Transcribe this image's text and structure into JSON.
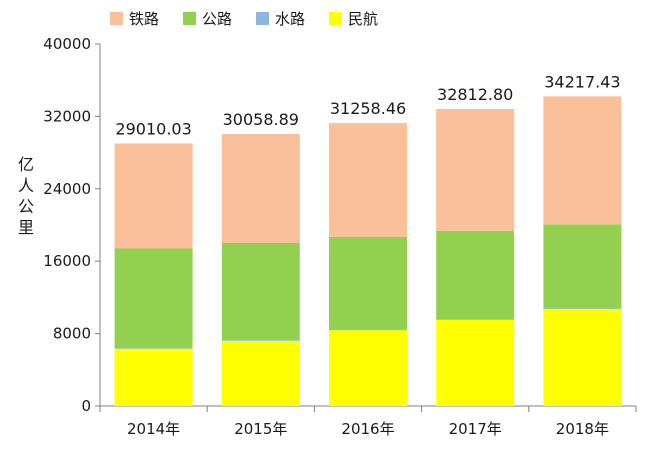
{
  "chart_data": {
    "type": "bar",
    "stacked": true,
    "categories": [
      "2014年",
      "2015年",
      "2016年",
      "2017年",
      "2018年"
    ],
    "series": [
      {
        "name": "铁路",
        "color": "#f9c09a",
        "values": [
          11605.0,
          12046.0,
          12579.0,
          13457.0,
          14147.0
        ]
      },
      {
        "name": "公路",
        "color": "#92d050",
        "values": [
          10997.0,
          10743.0,
          10229.0,
          9765.0,
          9280.0
        ]
      },
      {
        "name": "水路",
        "color": "#8fb4dd",
        "values": [
          74.0,
          73.0,
          72.0,
          78.0,
          80.0
        ]
      },
      {
        "name": "民航",
        "color": "#ffff00",
        "values": [
          6334.0,
          7197.0,
          8378.0,
          9513.0,
          10711.0
        ]
      }
    ],
    "totals": [
      "29010.03",
      "30058.89",
      "31258.46",
      "32812.80",
      "34217.43"
    ],
    "ylabel": "亿人公里",
    "ylim": [
      0,
      40000
    ],
    "yticks": [
      "0",
      "8000",
      "16000",
      "24000",
      "32000",
      "40000"
    ],
    "grid": false,
    "legend": "top-left"
  }
}
